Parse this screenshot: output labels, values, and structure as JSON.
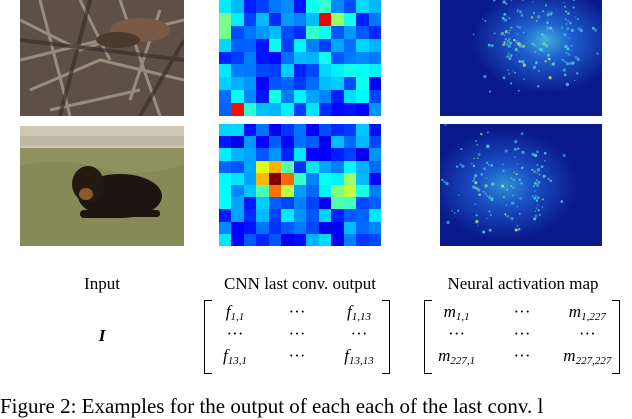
{
  "columns": {
    "input": "Input",
    "cnn": "CNN last conv. output",
    "neural": "Neural activation map"
  },
  "input_symbol": "I",
  "matrix_f": {
    "rows": [
      [
        "f",
        "1,1",
        "...",
        "f",
        "1,13"
      ],
      [
        "...",
        "",
        "...",
        "...",
        ""
      ],
      [
        "f",
        "13,1",
        "...",
        "f",
        "13,13"
      ]
    ]
  },
  "matrix_m": {
    "rows": [
      [
        "m",
        "1,1",
        "...",
        "m",
        "1,227"
      ],
      [
        "...",
        "",
        "...",
        "...",
        ""
      ],
      [
        "m",
        "227,1",
        "...",
        "m",
        "227,227"
      ]
    ]
  },
  "caption": "Figure 2: Examples for the output of each each of the last conv. l",
  "colors": {
    "photo_bird_bg": "#6b5a4a",
    "photo_dog_grass": "#9a9a62",
    "neural_bg": "#0a1a8c"
  }
}
